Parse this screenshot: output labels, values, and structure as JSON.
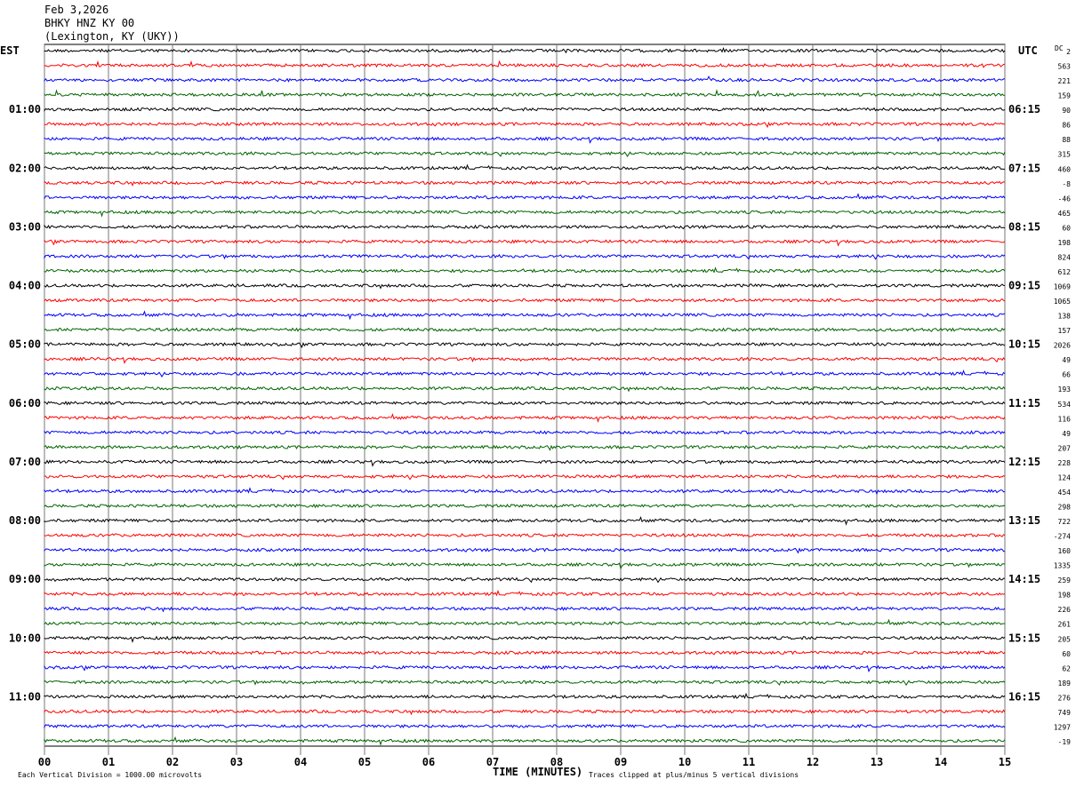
{
  "header": {
    "date": "Feb 3,2026",
    "station": "BHKY HNZ KY 00",
    "location": "(Lexington, KY (UKY))"
  },
  "chart_data": {
    "type": "line",
    "title": "Feb 3,2026",
    "left_timezone": "EST",
    "right_timezone": "UTC",
    "dc_label": "DC",
    "xlabel": "TIME (MINUTES)",
    "xlim": [
      0,
      15
    ],
    "x_ticks": [
      "00",
      "01",
      "02",
      "03",
      "04",
      "05",
      "06",
      "07",
      "08",
      "09",
      "10",
      "11",
      "12",
      "13",
      "14",
      "15"
    ],
    "grid": true,
    "left_hour_labels": [
      "01:00",
      "02:00",
      "03:00",
      "04:00",
      "05:00",
      "06:00",
      "07:00",
      "08:00",
      "09:00",
      "10:00",
      "11:00"
    ],
    "right_hour_labels": [
      "06:15",
      "07:15",
      "08:15",
      "09:15",
      "10:15",
      "11:15",
      "12:15",
      "13:15",
      "14:15",
      "15:15",
      "16:15"
    ],
    "trace_colors": [
      "#000000",
      "#ff0000",
      "#0000ff",
      "#006400"
    ],
    "dc_offsets": [
      "2",
      "563",
      "221",
      "159",
      "90",
      "86",
      "88",
      "315",
      "460",
      "-8",
      "-46",
      "465",
      "60",
      "198",
      "824",
      "612",
      "1069",
      "1065",
      "138",
      "157",
      "2026",
      "49",
      "66",
      "193",
      "534",
      "116",
      "49",
      "207",
      "228",
      "124",
      "454",
      "298",
      "722",
      "-274",
      "160",
      "1335",
      "259",
      "198",
      "226",
      "261",
      "205",
      "60",
      "62",
      "189",
      "276",
      "749",
      "1297",
      "-19"
    ],
    "scale_note": "Each Vertical Division = 1000.00 microvolts",
    "clip_note": "Traces clipped at plus/minus 5 vertical divisions"
  }
}
